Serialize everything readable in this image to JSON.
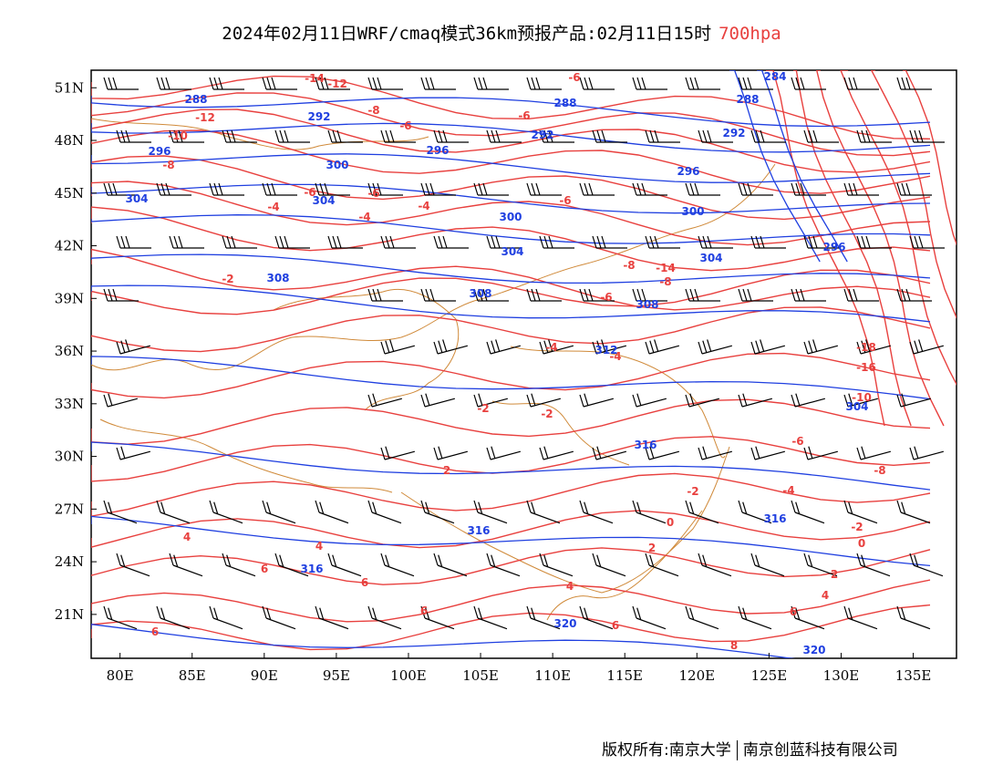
{
  "header": {
    "title": "2024年02月11日WRF/cmaq模式36km预报产品:02月11日15时",
    "level": "700hpa"
  },
  "footer": {
    "copyright": "版权所有:南京大学",
    "company": "南京创蓝科技有限公司"
  },
  "colors": {
    "temperature": "#e8403e",
    "geopotential": "#1f3fe0",
    "border": "#d08a3a",
    "wind": "#000000"
  },
  "axes": {
    "x_ticks": [
      "80E",
      "85E",
      "90E",
      "95E",
      "100E",
      "105E",
      "110E",
      "115E",
      "120E",
      "125E",
      "130E",
      "135E"
    ],
    "y_ticks": [
      "51N",
      "48N",
      "45N",
      "42N",
      "39N",
      "36N",
      "33N",
      "30N",
      "27N",
      "24N",
      "21N"
    ],
    "lon_range": [
      78,
      138
    ],
    "lat_range": [
      18.5,
      52
    ]
  },
  "temperature_labels": [
    "-12",
    "-10",
    "-8",
    "-6",
    "-4",
    "-2",
    "0",
    "2",
    "4",
    "6",
    "8",
    "-18",
    "-16"
  ],
  "height_labels": [
    "284",
    "288",
    "292",
    "296",
    "300",
    "304",
    "308",
    "312",
    "316",
    "320"
  ]
}
